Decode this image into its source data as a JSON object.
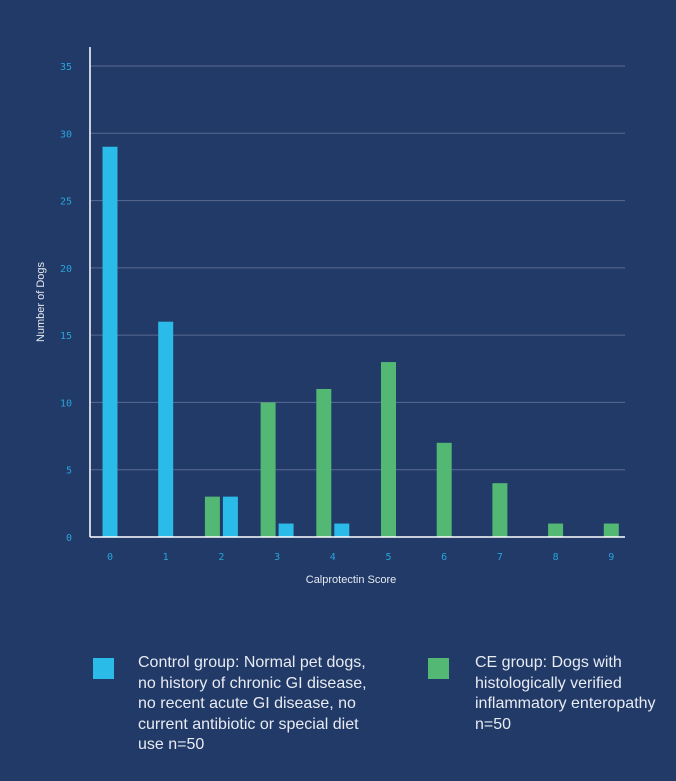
{
  "chart_data": {
    "type": "bar",
    "title": "",
    "xlabel": "Calprotectin Score",
    "ylabel": "Number of Dogs",
    "categories": [
      "0",
      "1",
      "2",
      "3",
      "4",
      "5",
      "6",
      "7",
      "8",
      "9"
    ],
    "ylim": [
      0,
      35
    ],
    "yticks": [
      0,
      5,
      10,
      15,
      20,
      25,
      30,
      35
    ],
    "grid": true,
    "legend_position": "bottom",
    "series": [
      {
        "name": "CE group: Dogs with histologically verified inflammatory enteropathy n=50",
        "color": "#52b874",
        "values": [
          0,
          0,
          3,
          10,
          11,
          13,
          7,
          4,
          1,
          1
        ]
      },
      {
        "name": "Control group: Normal pet dogs, no history of chronic GI disease, no recent acute GI disease, no current antibiotic or special diet use n=50",
        "color": "#2bbbe9",
        "values": [
          29,
          16,
          3,
          1,
          1,
          0,
          0,
          0,
          0,
          0
        ]
      }
    ]
  },
  "legend": {
    "control": {
      "label": "Control group: Normal pet dogs, no history of chronic GI disease, no recent acute GI disease, no current antibiotic or special diet use n=50",
      "color": "#2bbbe9"
    },
    "ce": {
      "label": "CE group: Dogs with histologically verified inflammatory enteropathy n=50",
      "color": "#52b874"
    }
  }
}
